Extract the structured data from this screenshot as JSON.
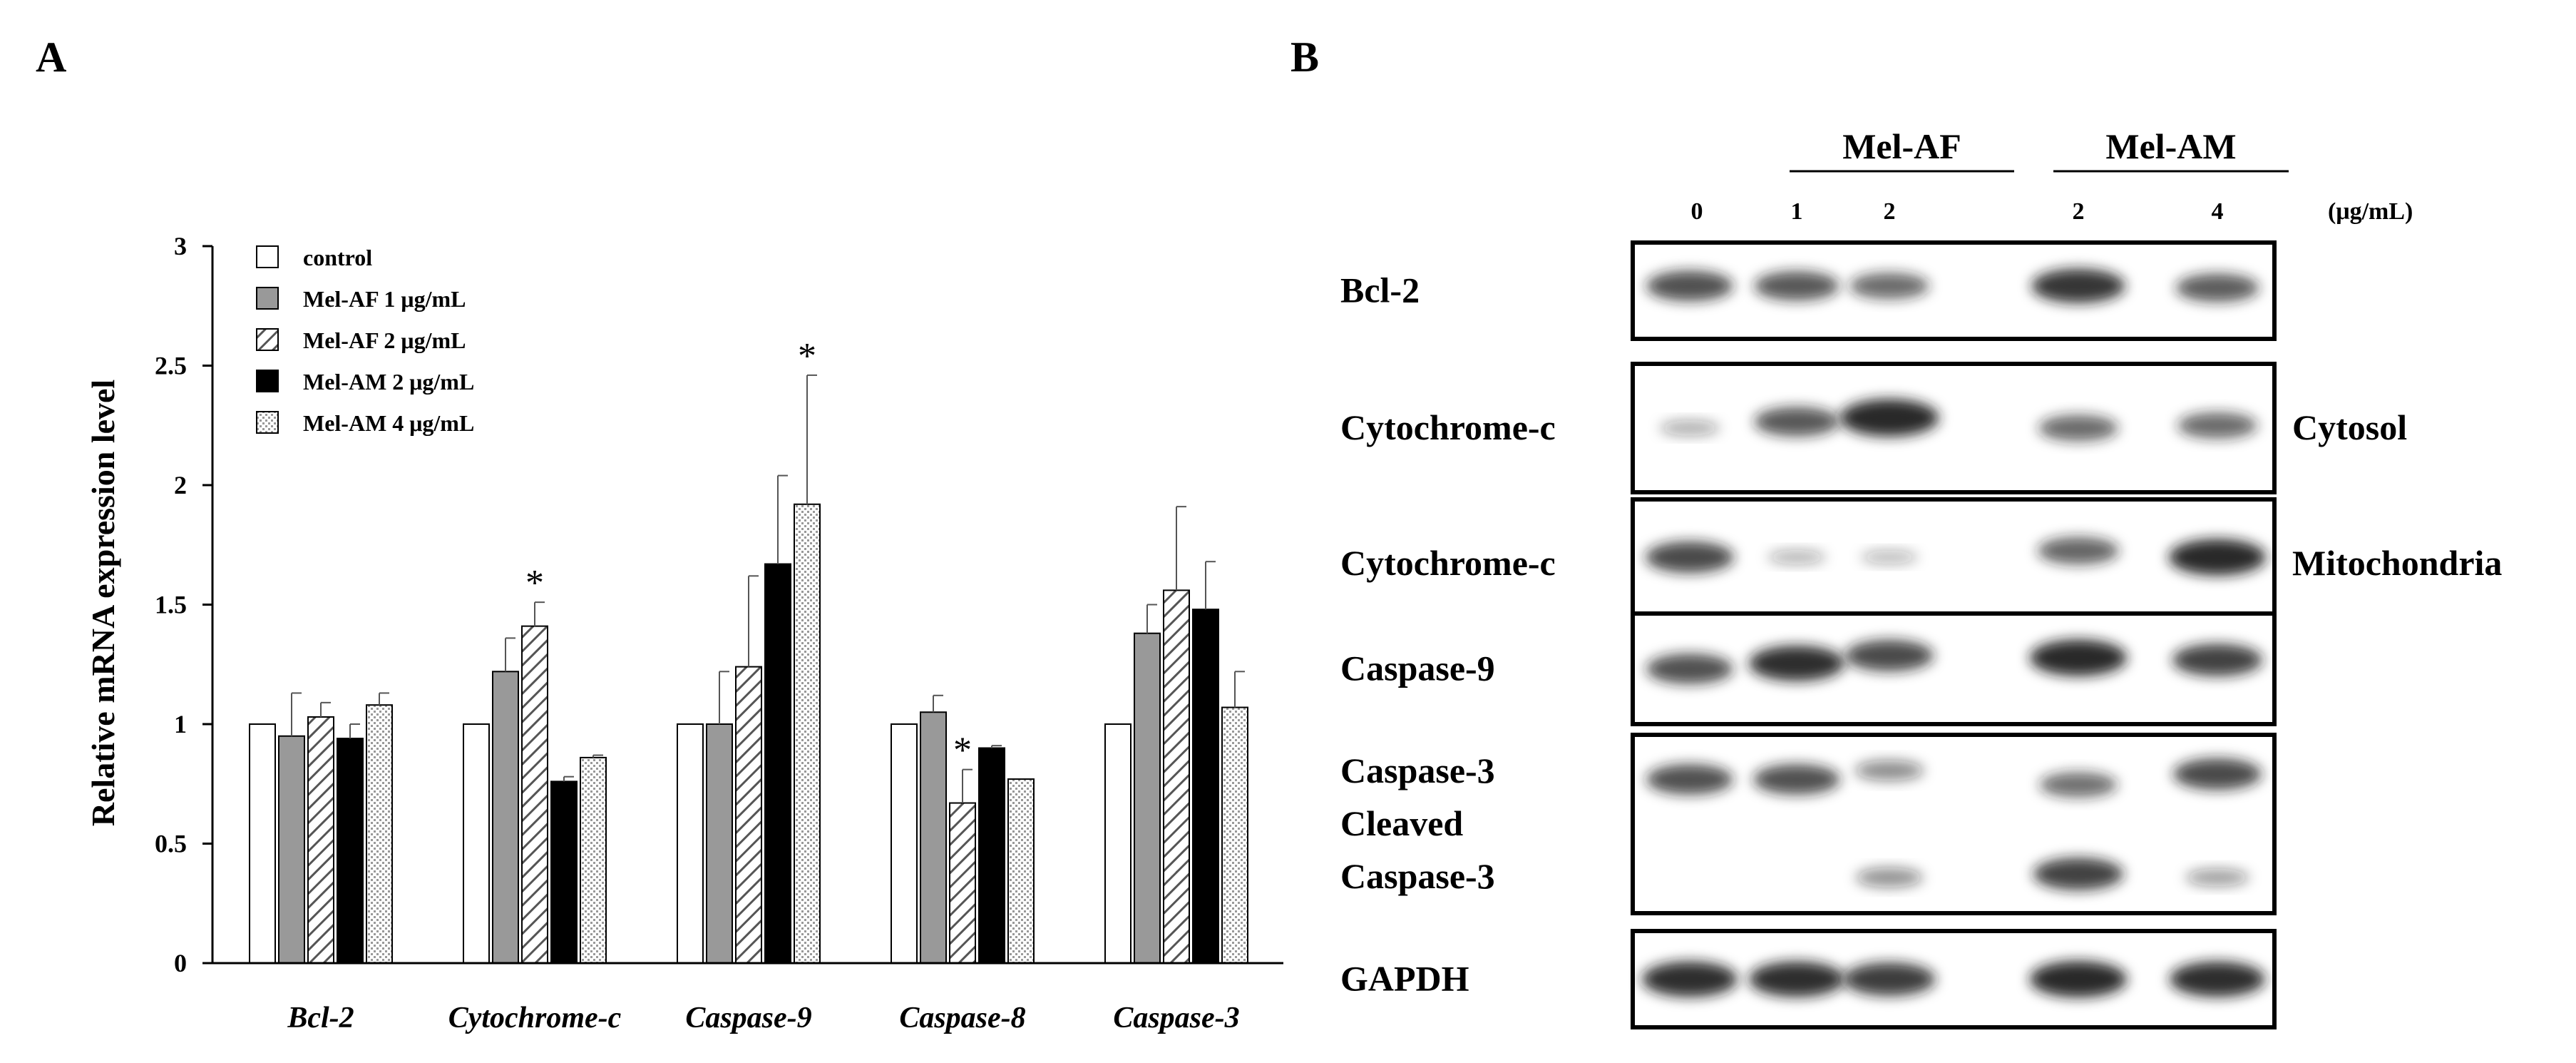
{
  "panels": {
    "a_label": "A",
    "b_label": "B"
  },
  "chart_data": {
    "type": "bar",
    "title": "",
    "xlabel": "",
    "ylabel": "Relative mRNA expression level",
    "ylim": [
      0,
      3
    ],
    "yticks": [
      "0",
      "0.5",
      "1",
      "1.5",
      "2",
      "2.5",
      "3"
    ],
    "grid": false,
    "legend_position": "top-left",
    "categories": [
      "Bcl-2",
      "Cytochrome-c",
      "Caspase-9",
      "Caspase-8",
      "Caspase-3"
    ],
    "series": [
      {
        "name": "control",
        "fill": "white",
        "values": [
          1.0,
          1.0,
          1.0,
          1.0,
          1.0
        ],
        "errors": [
          0,
          0,
          0,
          0,
          0
        ]
      },
      {
        "name": "Mel-AF 1 μg/mL",
        "fill": "gray",
        "values": [
          0.95,
          1.22,
          1.0,
          1.05,
          1.38
        ],
        "errors": [
          0.18,
          0.14,
          0.22,
          0.07,
          0.12
        ]
      },
      {
        "name": "Mel-AF 2 μg/mL",
        "fill": "hatch",
        "values": [
          1.03,
          1.41,
          1.24,
          0.67,
          1.56
        ],
        "errors": [
          0.06,
          0.1,
          0.38,
          0.14,
          0.35
        ]
      },
      {
        "name": "Mel-AM 2 μg/mL",
        "fill": "black",
        "values": [
          0.94,
          0.76,
          1.67,
          0.9,
          1.48
        ],
        "errors": [
          0.06,
          0.02,
          0.37,
          0.01,
          0.2
        ]
      },
      {
        "name": "Mel-AM 4 μg/mL",
        "fill": "dots",
        "values": [
          1.08,
          0.86,
          1.92,
          0.77,
          1.07
        ],
        "errors": [
          0.05,
          0.01,
          0.54,
          0.0,
          0.15
        ]
      }
    ],
    "annotations": [
      {
        "text": "*",
        "category": "Cytochrome-c",
        "series": 2
      },
      {
        "text": "*",
        "category": "Caspase-9",
        "series": 4
      },
      {
        "text": "*",
        "category": "Caspase-8",
        "series": 2
      }
    ]
  },
  "blot": {
    "groups": [
      "Mel-AF",
      "Mel-AM"
    ],
    "lanes": [
      "0",
      "1",
      "2",
      "2",
      "4"
    ],
    "unit": "(μg/mL)",
    "rows": [
      {
        "label_lines": [
          "Bcl-2"
        ],
        "side_label": "",
        "bands": [
          [
            0.45,
            0.95
          ],
          [
            0.45,
            0.9
          ],
          [
            0.45,
            0.75
          ],
          [
            0.45,
            1.15
          ],
          [
            0.47,
            0.85
          ]
        ]
      },
      {
        "label_lines": [
          "Cytochrome-c"
        ],
        "side_label": "Cytosol",
        "bands": [
          [
            0.5,
            0.2
          ],
          [
            0.45,
            0.9
          ],
          [
            0.42,
            1.3
          ],
          [
            0.5,
            0.75
          ],
          [
            0.48,
            0.75
          ]
        ]
      },
      {
        "label_lines": [
          "Cytochrome-c"
        ],
        "side_label": "Mitochondria",
        "bands": [
          [
            0.45,
            1.0
          ],
          [
            0.45,
            0.15
          ],
          [
            0.45,
            0.12
          ],
          [
            0.4,
            0.8
          ],
          [
            0.45,
            1.25
          ]
        ]
      },
      {
        "label_lines": [
          "Caspase-9"
        ],
        "side_label": "",
        "bands": [
          [
            0.5,
            0.95
          ],
          [
            0.45,
            1.2
          ],
          [
            0.38,
            1.0
          ],
          [
            0.4,
            1.25
          ],
          [
            0.42,
            1.05
          ]
        ]
      },
      {
        "label_lines": [
          "Caspase-3",
          "Cleaved",
          "Caspase-3"
        ],
        "side_label": "",
        "bands": [
          [
            0.25,
            0.95
          ],
          [
            0.25,
            0.95
          ],
          [
            0.2,
            0.45
          ],
          [
            0.28,
            0.7
          ],
          [
            0.22,
            1.0
          ],
          [
            0.8,
            0.0
          ],
          [
            0.8,
            0.0
          ],
          [
            0.8,
            0.4
          ],
          [
            0.78,
            1.05
          ],
          [
            0.8,
            0.3
          ]
        ]
      },
      {
        "label_lines": [
          "GAPDH"
        ],
        "side_label": "",
        "bands": [
          [
            0.5,
            1.2
          ],
          [
            0.5,
            1.2
          ],
          [
            0.5,
            1.1
          ],
          [
            0.5,
            1.25
          ],
          [
            0.5,
            1.2
          ]
        ]
      }
    ]
  }
}
